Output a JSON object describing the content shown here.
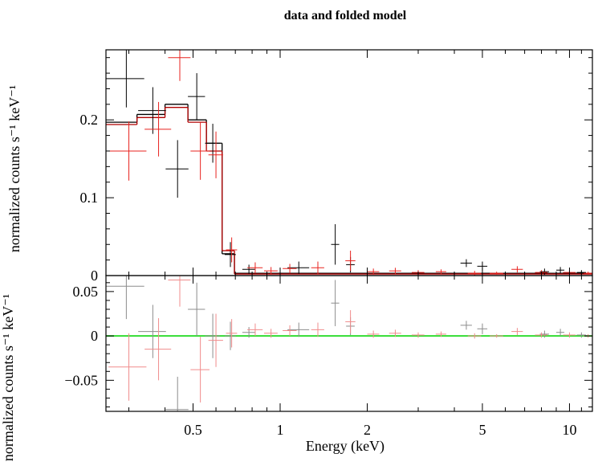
{
  "chart_data": [
    {
      "type": "errorbar",
      "title": "data and folded model",
      "ylabel": "normalized counts s⁻¹ keV⁻¹",
      "xscale": "log",
      "xlim": [
        0.25,
        12
      ],
      "xticks": [
        0.5,
        1,
        2,
        5,
        10
      ],
      "xminor_ticks": [
        0.3,
        0.4,
        0.6,
        0.7,
        0.8,
        0.9,
        3,
        4,
        6,
        7,
        8,
        9,
        11,
        12
      ],
      "ylim": [
        0,
        0.29
      ],
      "yticks": [
        0,
        0.1,
        0.2
      ],
      "yminor_ticks": [
        0.02,
        0.04,
        0.06,
        0.08,
        0.12,
        0.14,
        0.16,
        0.18,
        0.22,
        0.24,
        0.26,
        0.28
      ],
      "series": [
        {
          "color": "#000000",
          "x": [
            0.294,
            0.363,
            0.442,
            0.515,
            0.585,
            0.673,
            0.78,
            1.16,
            1.55,
            1.75,
            4.4,
            5.0,
            8.2,
            9.3,
            11.0
          ],
          "xerr": [
            0.045,
            0.04,
            0.04,
            0.035,
            0.035,
            0.03,
            0.04,
            0.1,
            0.05,
            0.06,
            0.2,
            0.2,
            0.3,
            0.3,
            0.4
          ],
          "values": [
            0.253,
            0.212,
            0.137,
            0.23,
            0.17,
            0.027,
            0.008,
            0.01,
            0.04,
            0.014,
            0.016,
            0.012,
            0.005,
            0.007,
            0.004
          ],
          "yerr": [
            0.037,
            0.03,
            0.037,
            0.03,
            0.025,
            0.016,
            0.006,
            0.008,
            0.026,
            0.01,
            0.005,
            0.006,
            0.004,
            0.004,
            0.003
          ]
        },
        {
          "color": "#e8231f",
          "x": [
            0.3,
            0.38,
            0.45,
            0.53,
            0.6,
            0.68,
            0.82,
            0.93,
            1.08,
            1.35,
            1.75,
            2.1,
            2.5,
            3.0,
            3.6,
            4.7,
            5.6,
            6.6,
            8.0,
            10.0,
            11.6
          ],
          "xerr": [
            0.045,
            0.04,
            0.04,
            0.04,
            0.035,
            0.03,
            0.05,
            0.05,
            0.06,
            0.07,
            0.07,
            0.1,
            0.12,
            0.15,
            0.15,
            0.25,
            0.3,
            0.3,
            0.4,
            0.5,
            0.4
          ],
          "values": [
            0.16,
            0.188,
            0.28,
            0.16,
            0.155,
            0.033,
            0.01,
            0.006,
            0.009,
            0.01,
            0.019,
            0.005,
            0.006,
            0.004,
            0.005,
            0.003,
            0.003,
            0.008,
            0.004,
            0.004,
            0.003
          ],
          "yerr": [
            0.038,
            0.035,
            0.03,
            0.037,
            0.03,
            0.016,
            0.007,
            0.005,
            0.006,
            0.008,
            0.013,
            0.004,
            0.004,
            0.003,
            0.003,
            0.003,
            0.002,
            0.004,
            0.003,
            0.003,
            0.002
          ]
        }
      ],
      "models": [
        {
          "color": "#000000",
          "edges": [
            0.25,
            0.32,
            0.4,
            0.48,
            0.556,
            0.63,
            0.695,
            12
          ],
          "values": [
            0.197,
            0.207,
            0.22,
            0.2,
            0.17,
            0.028,
            0.003
          ]
        },
        {
          "color": "#b00000",
          "edges": [
            0.25,
            0.32,
            0.4,
            0.48,
            0.556,
            0.63,
            0.695,
            12
          ],
          "values": [
            0.194,
            0.203,
            0.216,
            0.197,
            0.16,
            0.032,
            0.002
          ]
        }
      ]
    },
    {
      "type": "errorbar",
      "ylabel": "normalized counts s⁻¹ keV⁻¹",
      "xlabel": "Energy (keV)",
      "xscale": "log",
      "xlim": [
        0.25,
        12
      ],
      "xticks": [
        0.5,
        1,
        2,
        5,
        10
      ],
      "xminor_ticks": [
        0.3,
        0.4,
        0.6,
        0.7,
        0.8,
        0.9,
        3,
        4,
        6,
        7,
        8,
        9,
        11,
        12
      ],
      "ylim": [
        -0.085,
        0.068
      ],
      "yticks": [
        {
          "value": -0.05,
          "label": "−0.05"
        },
        0,
        0.05
      ],
      "yminor_ticks": [
        -0.08,
        -0.07,
        -0.06,
        -0.04,
        -0.03,
        -0.02,
        -0.01,
        0.01,
        0.02,
        0.03,
        0.04,
        0.06
      ],
      "zero_line_color": "#33dd33",
      "series": [
        {
          "color": "#8c8c8c",
          "x": [
            0.294,
            0.363,
            0.442,
            0.515,
            0.585,
            0.673,
            0.78,
            1.16,
            1.55,
            1.75,
            4.4,
            5.0,
            8.2,
            9.3,
            11.0
          ],
          "xerr": [
            0.045,
            0.04,
            0.04,
            0.035,
            0.035,
            0.03,
            0.04,
            0.1,
            0.05,
            0.06,
            0.2,
            0.2,
            0.3,
            0.3,
            0.4
          ],
          "values": [
            0.056,
            0.005,
            -0.083,
            0.03,
            0.0,
            0.0,
            0.004,
            0.007,
            0.037,
            0.011,
            0.012,
            0.008,
            0.002,
            0.004,
            0.001
          ],
          "yerr": [
            0.037,
            0.03,
            0.037,
            0.03,
            0.025,
            0.016,
            0.006,
            0.008,
            0.026,
            0.01,
            0.005,
            0.006,
            0.004,
            0.004,
            0.003
          ]
        },
        {
          "color": "#f08c8c",
          "x": [
            0.3,
            0.38,
            0.45,
            0.53,
            0.6,
            0.68,
            0.82,
            0.93,
            1.08,
            1.35,
            1.75,
            2.1,
            2.5,
            3.0,
            3.6,
            4.7,
            5.6,
            6.6,
            8.0,
            10.0,
            11.6
          ],
          "xerr": [
            0.045,
            0.04,
            0.04,
            0.04,
            0.035,
            0.03,
            0.05,
            0.05,
            0.06,
            0.07,
            0.07,
            0.1,
            0.12,
            0.15,
            0.15,
            0.25,
            0.3,
            0.3,
            0.4,
            0.5,
            0.4
          ],
          "values": [
            -0.035,
            -0.015,
            0.063,
            -0.038,
            -0.005,
            0.003,
            0.007,
            0.003,
            0.006,
            0.007,
            0.016,
            0.002,
            0.003,
            0.001,
            0.002,
            0.0,
            0.0,
            0.005,
            0.001,
            0.001,
            0.0
          ],
          "yerr": [
            0.038,
            0.035,
            0.03,
            0.037,
            0.03,
            0.016,
            0.007,
            0.005,
            0.006,
            0.008,
            0.013,
            0.004,
            0.004,
            0.003,
            0.003,
            0.003,
            0.002,
            0.004,
            0.003,
            0.003,
            0.002
          ]
        }
      ]
    }
  ]
}
